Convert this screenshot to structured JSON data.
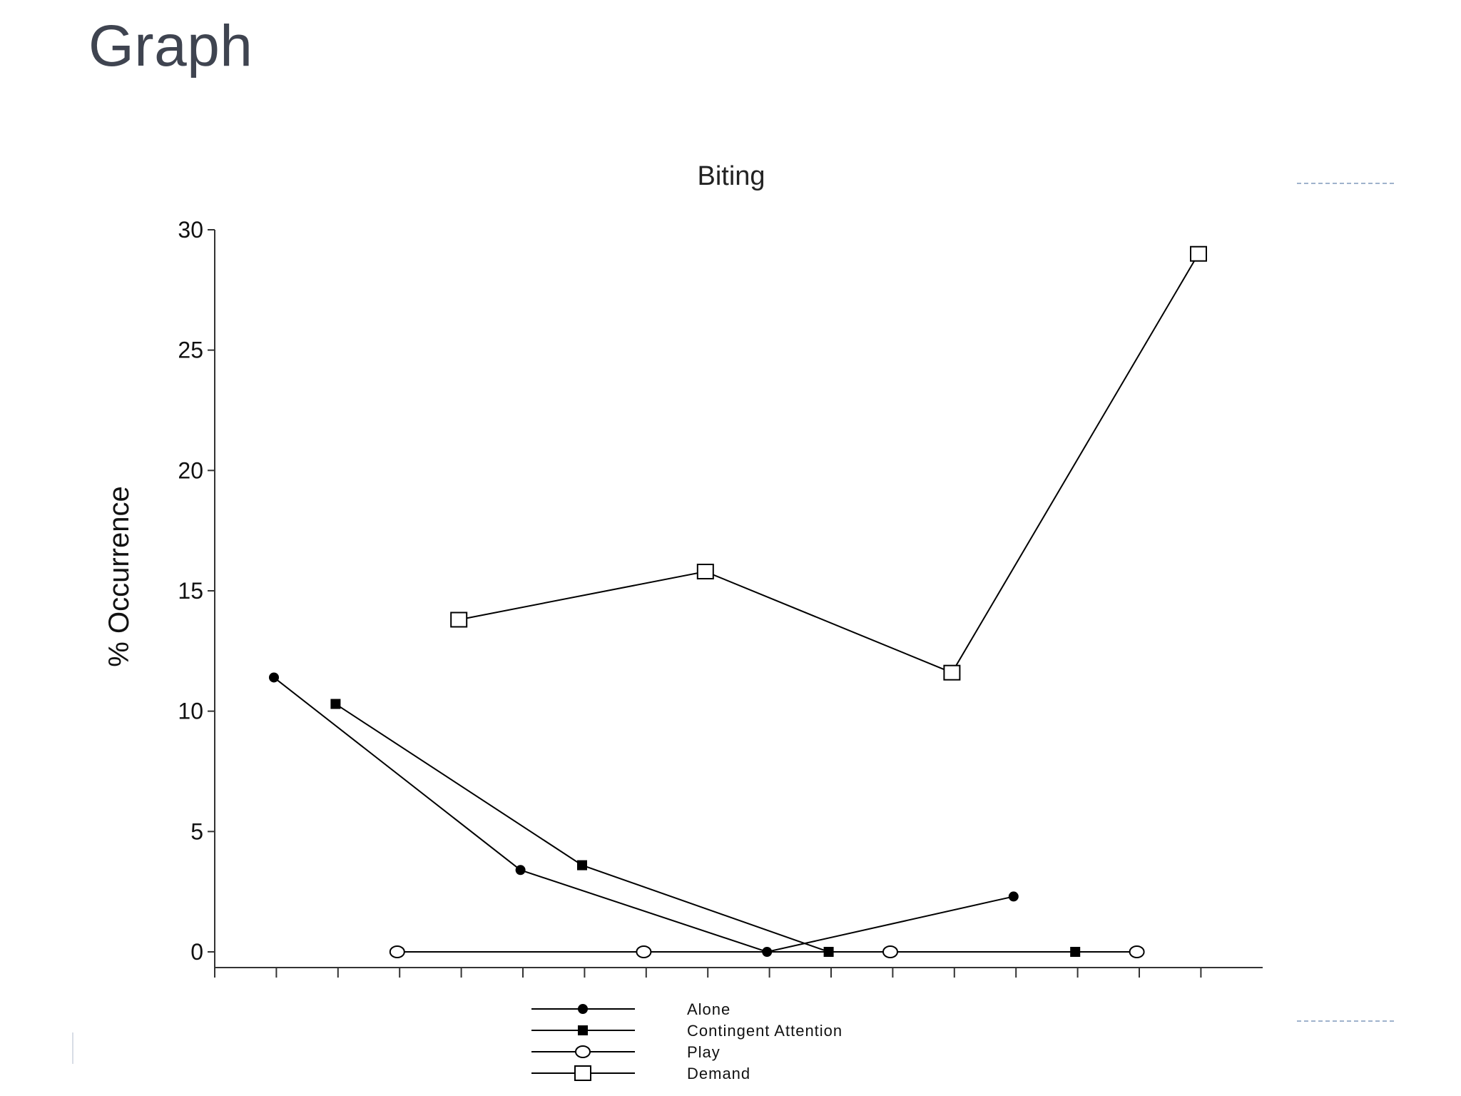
{
  "slide": {
    "title": "Graph"
  },
  "chart_data": {
    "type": "line",
    "title": "Biting",
    "xlabel": "",
    "ylabel": "% Occurrence",
    "x": [
      1,
      2,
      3,
      4,
      5,
      6,
      7,
      8,
      9,
      10,
      11,
      12,
      13,
      14,
      15,
      16
    ],
    "xlim": [
      0,
      17
    ],
    "ylim": [
      0,
      30
    ],
    "yticks": [
      "0",
      "5",
      "10",
      "15",
      "20",
      "25",
      "30"
    ],
    "grid": false,
    "legend_position": "bottom",
    "series": [
      {
        "name": "Alone",
        "marker": "filled-circle",
        "color": "#000000",
        "points": [
          [
            1,
            11.4
          ],
          [
            5,
            3.4
          ],
          [
            9,
            0
          ],
          [
            13,
            2.3
          ]
        ]
      },
      {
        "name": "Contingent Attention",
        "marker": "filled-square",
        "color": "#000000",
        "points": [
          [
            2,
            10.3
          ],
          [
            6,
            3.6
          ],
          [
            10,
            0
          ],
          [
            14,
            0
          ]
        ]
      },
      {
        "name": "Play",
        "marker": "open-circle",
        "color": "#000000",
        "points": [
          [
            3,
            0
          ],
          [
            7,
            0
          ],
          [
            11,
            0
          ],
          [
            15,
            0
          ]
        ]
      },
      {
        "name": "Demand",
        "marker": "open-square",
        "color": "#000000",
        "points": [
          [
            4,
            13.8
          ],
          [
            8,
            15.8
          ],
          [
            12,
            11.6
          ],
          [
            16,
            29
          ]
        ]
      }
    ]
  }
}
